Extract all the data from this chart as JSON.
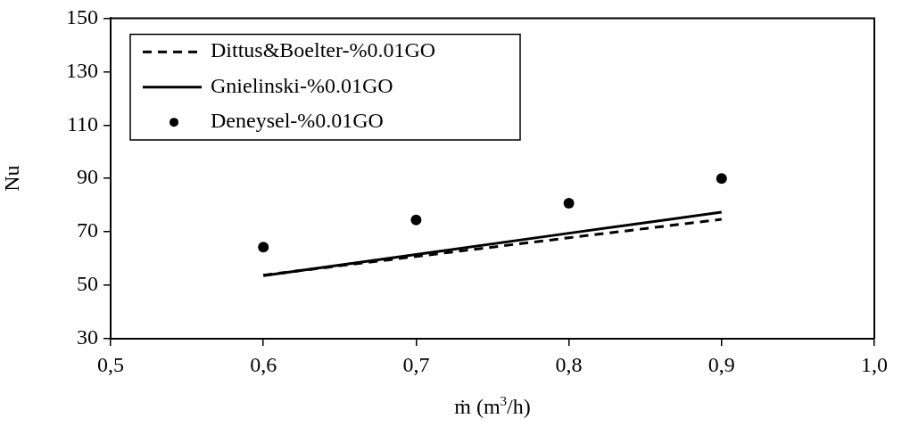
{
  "chart_data": {
    "type": "line",
    "xlabel": "ṁ (m$^{3}$/h)",
    "ylabel": "Nu",
    "xlim": [
      0.5,
      1.0
    ],
    "xticks": [
      {
        "value": 0.5,
        "label": "0,5"
      },
      {
        "value": 0.6,
        "label": "0,6"
      },
      {
        "value": 0.7,
        "label": "0,7"
      },
      {
        "value": 0.8,
        "label": "0,8"
      },
      {
        "value": 0.9,
        "label": "0,9"
      },
      {
        "value": 1.0,
        "label": "1,0"
      }
    ],
    "ylim": [
      30,
      150
    ],
    "yticks": [
      30,
      50,
      70,
      90,
      110,
      130,
      150
    ],
    "grid": false,
    "legend": "top left",
    "x": [
      0.6,
      0.7,
      0.8,
      0.9
    ],
    "series": [
      {
        "name": "Dittus&Boelter-%0.01GO",
        "line_style": "dashed",
        "color": "#000000",
        "values": [
          53.8,
          60.8,
          67.8,
          74.7
        ]
      },
      {
        "name": "Gnielinski-%0.01GO",
        "line_style": "solid",
        "color": "#000000",
        "values": [
          53.6,
          61.5,
          69.5,
          77.4
        ]
      },
      {
        "name": "Deneysel-%0.01GO",
        "type": "scatter",
        "marker": "circle",
        "color": "#000000",
        "values": [
          64.3,
          74.5,
          80.7,
          90.0
        ]
      }
    ]
  }
}
